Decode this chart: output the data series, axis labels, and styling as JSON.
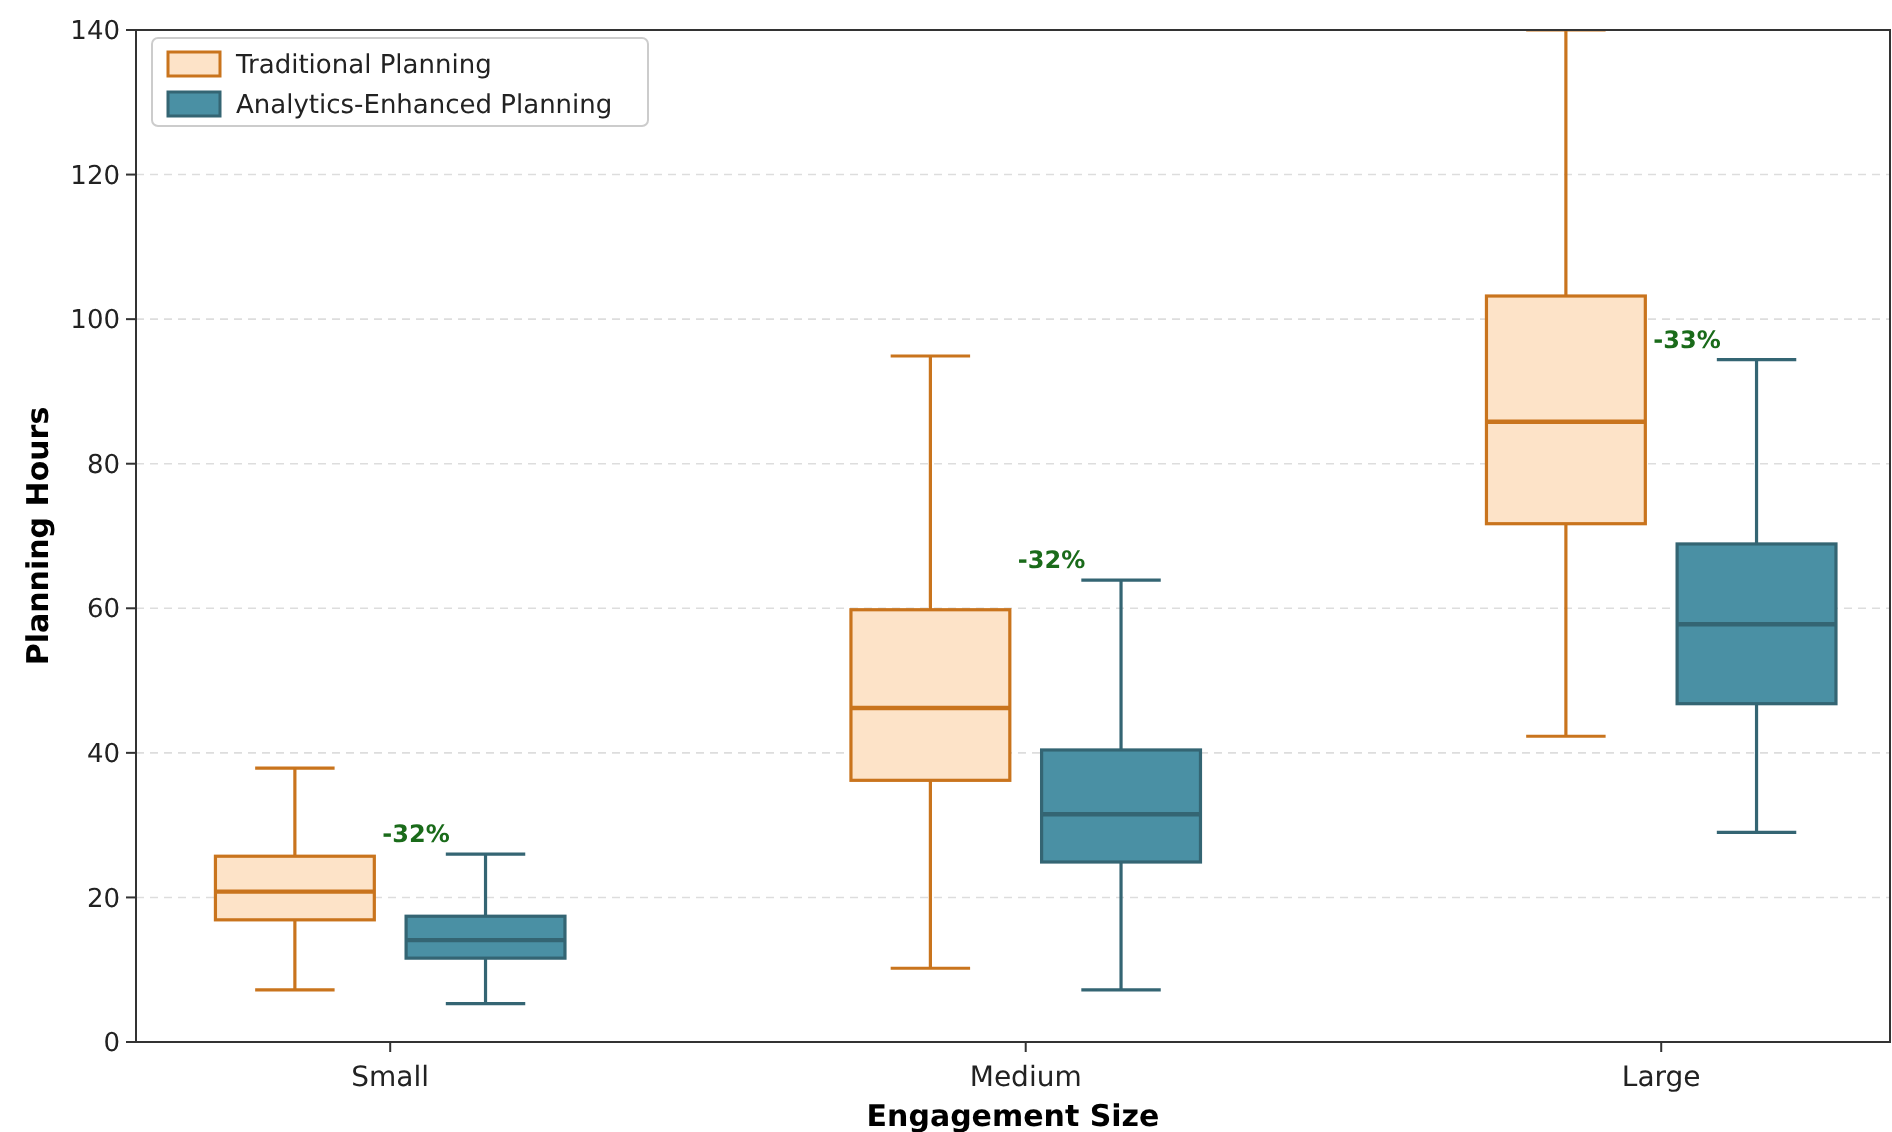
{
  "chart_data": {
    "type": "box",
    "xlabel": "Engagement Size",
    "ylabel": "Planning Hours",
    "categories": [
      "Small",
      "Medium",
      "Large"
    ],
    "series": [
      {
        "name": "Traditional Planning",
        "color": "#fde3c8",
        "boxes": [
          {
            "low": 7.2,
            "q1": 16.9,
            "median": 20.8,
            "q3": 25.7,
            "high": 37.9
          },
          {
            "low": 10.2,
            "q1": 36.2,
            "median": 46.2,
            "q3": 59.8,
            "high": 94.9
          },
          {
            "low": 42.3,
            "q1": 71.7,
            "median": 85.8,
            "q3": 103.2,
            "high": 140
          }
        ]
      },
      {
        "name": "Analytics-Enhanced Planning",
        "color": "#4a90a4",
        "boxes": [
          {
            "low": 5.3,
            "q1": 11.6,
            "median": 14.1,
            "q3": 17.4,
            "high": 26
          },
          {
            "low": 7.2,
            "q1": 24.9,
            "median": 31.5,
            "q3": 40.4,
            "high": 63.9
          },
          {
            "low": 29,
            "q1": 46.8,
            "median": 57.8,
            "q3": 68.9,
            "high": 94.4
          }
        ]
      }
    ],
    "annotations": [
      "-32%",
      "-32%",
      "-33%"
    ],
    "ylim": [
      0,
      140
    ],
    "yticks": [
      0,
      20,
      40,
      60,
      80,
      100,
      120,
      140
    ],
    "grid": "y",
    "legend": "top left"
  }
}
